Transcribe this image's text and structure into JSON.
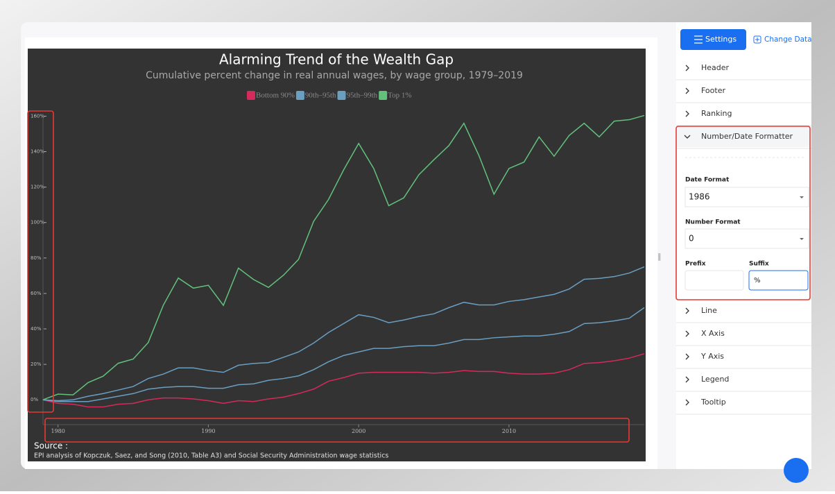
{
  "chart_data": {
    "type": "line",
    "title": "Alarming Trend of the Wealth Gap",
    "subtitle": "Cumulative percent change in real annual wages, by wage group, 1979–2019",
    "source_label": "Source :",
    "source": "EPI analysis of Kopczuk, Saez, and Song (2010, Table A3) and Social Security Administration wage statistics",
    "x": [
      1979,
      1980,
      1981,
      1982,
      1983,
      1984,
      1985,
      1986,
      1987,
      1988,
      1989,
      1990,
      1991,
      1992,
      1993,
      1994,
      1995,
      1996,
      1997,
      1998,
      1999,
      2000,
      2001,
      2002,
      2003,
      2004,
      2005,
      2006,
      2007,
      2008,
      2009,
      2010,
      2011,
      2012,
      2013,
      2014,
      2015,
      2016,
      2017,
      2018,
      2019
    ],
    "series": [
      {
        "name": "Bottom 90%",
        "color": "#d62a5c",
        "values": [
          0,
          -2,
          -2.5,
          -4,
          -4,
          -2.5,
          -2,
          0,
          1,
          1,
          0.5,
          -0.5,
          -2,
          -0.5,
          -1,
          0.5,
          1.5,
          3.5,
          6,
          10.5,
          12.5,
          15,
          15.5,
          15.5,
          15.5,
          15.5,
          15,
          15.5,
          16.5,
          16,
          16,
          15,
          14.5,
          14.5,
          15,
          17,
          20.5,
          21,
          22,
          23.5,
          26
        ]
      },
      {
        "name": "90th–95th",
        "color": "#6a9fc2",
        "values": [
          0,
          -1,
          -1,
          -1,
          0.5,
          2,
          3.5,
          6,
          7,
          7.5,
          7.5,
          6.5,
          6.5,
          8.5,
          9,
          11,
          12,
          13.5,
          17,
          21.5,
          25,
          27,
          29,
          29,
          30,
          30.5,
          30.5,
          32,
          34,
          34,
          35,
          35.5,
          36,
          36,
          37,
          38.5,
          43,
          43.5,
          44.5,
          46,
          52
        ]
      },
      {
        "name": "95th–99th",
        "color": "#6a9fc2",
        "values": [
          0,
          -0.5,
          0,
          2,
          3.5,
          5.5,
          7.5,
          12,
          14.5,
          18,
          18,
          16.5,
          15.5,
          19.5,
          20.5,
          21,
          24,
          27,
          32,
          38,
          43,
          48,
          46.5,
          43.5,
          45,
          47,
          48.5,
          52,
          55,
          53.5,
          53.5,
          55.5,
          56.5,
          58,
          59.5,
          62.5,
          68,
          68.5,
          69.5,
          71.5,
          75
        ]
      },
      {
        "name": "Top 1%",
        "color": "#62c27c",
        "values": [
          0,
          3.2,
          2.8,
          9.7,
          13.3,
          20.6,
          23,
          32.3,
          53.3,
          68.7,
          63,
          64.6,
          53.3,
          74.3,
          67.9,
          63.4,
          70.3,
          79.2,
          100.6,
          113.1,
          129.7,
          144.6,
          130.5,
          109.5,
          113.9,
          126.9,
          135.4,
          143.4,
          156,
          137.8,
          116,
          130.5,
          134.1,
          148.3,
          137.4,
          149.1,
          156,
          148.3,
          157.2,
          158,
          160.4
        ]
      }
    ],
    "xlim": [
      1979,
      2019
    ],
    "xticks": [
      1980,
      1990,
      2000,
      2010
    ],
    "ylim": [
      -14,
      168
    ],
    "yticks": [
      {
        "value": 0,
        "label": "0%"
      },
      {
        "value": 20,
        "label": "20%"
      },
      {
        "value": 40,
        "label": "40%"
      },
      {
        "value": 60,
        "label": "60%"
      },
      {
        "value": 80,
        "label": "80%"
      },
      {
        "value": 100,
        "label": "100%"
      },
      {
        "value": 120,
        "label": "120%"
      },
      {
        "value": 140,
        "label": "140%"
      },
      {
        "value": 160,
        "label": "160%"
      }
    ],
    "grid": false
  },
  "panel": {
    "tabs": [
      "Settings",
      "Change Data"
    ],
    "sections": [
      "Header",
      "Footer",
      "Ranking",
      "Number/Date Formatter",
      "Line",
      "X Axis",
      "Y Axis",
      "Legend",
      "Tooltip"
    ],
    "date_format_label": "Date Format",
    "date_format": "1986",
    "number_format_label": "Number Format",
    "number_format": "0",
    "prefix_label": "Prefix",
    "suffix_label": "Suffix",
    "suffix": "%"
  }
}
